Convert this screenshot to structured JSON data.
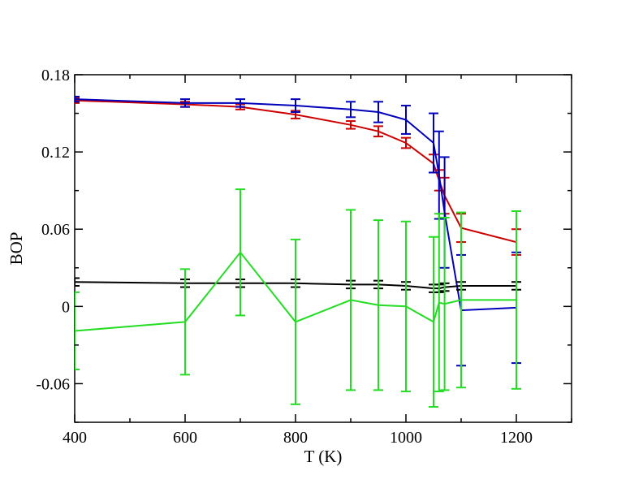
{
  "chart_data": {
    "type": "line",
    "title": "",
    "xlabel": "T (K)",
    "ylabel": "BOP",
    "xlim": [
      400,
      1300
    ],
    "ylim": [
      -0.09,
      0.18
    ],
    "xticks": [
      400,
      600,
      800,
      1000,
      1200
    ],
    "xtick_labels": [
      "400",
      "600",
      "800",
      "1000",
      "1200"
    ],
    "yticks": [
      -0.06,
      0,
      0.06,
      0.12,
      0.18
    ],
    "ytick_labels": [
      "-0.06",
      "0",
      "0.06",
      "0.12",
      "0.18"
    ],
    "grid": false,
    "legend": "none",
    "series": [
      {
        "color": "#cc0000",
        "x": [
          400,
          600,
          700,
          800,
          900,
          950,
          1000,
          1050,
          1060,
          1070,
          1100,
          1200
        ],
        "y": [
          0.16,
          0.157,
          0.155,
          0.149,
          0.141,
          0.136,
          0.127,
          0.111,
          0.098,
          0.086,
          0.061,
          0.05
        ],
        "err": [
          0.002,
          0.002,
          0.002,
          0.003,
          0.003,
          0.004,
          0.004,
          0.007,
          0.008,
          0.014,
          0.011,
          0.01
        ]
      },
      {
        "color": "#0000bb",
        "x": [
          400,
          600,
          700,
          800,
          900,
          950,
          1000,
          1050,
          1060,
          1070,
          1100,
          1200
        ],
        "y": [
          0.161,
          0.158,
          0.158,
          0.156,
          0.153,
          0.151,
          0.145,
          0.127,
          0.102,
          0.073,
          -0.003,
          -0.001
        ],
        "err": [
          0.002,
          0.003,
          0.003,
          0.005,
          0.006,
          0.008,
          0.011,
          0.023,
          0.034,
          0.043,
          0.043,
          0.043
        ]
      },
      {
        "color": "#000000",
        "x": [
          400,
          600,
          700,
          800,
          900,
          950,
          1000,
          1050,
          1060,
          1070,
          1100,
          1200
        ],
        "y": [
          0.019,
          0.018,
          0.018,
          0.018,
          0.017,
          0.017,
          0.016,
          0.014,
          0.014,
          0.015,
          0.016,
          0.016
        ],
        "err": [
          0.003,
          0.003,
          0.003,
          0.003,
          0.003,
          0.003,
          0.003,
          0.003,
          0.003,
          0.003,
          0.003,
          0.003
        ]
      },
      {
        "color": "#22dd22",
        "x": [
          400,
          600,
          700,
          800,
          900,
          950,
          1000,
          1050,
          1060,
          1070,
          1100,
          1200
        ],
        "y": [
          -0.019,
          -0.012,
          0.042,
          -0.012,
          0.005,
          0.001,
          0.0,
          -0.012,
          0.003,
          0.002,
          0.005,
          0.005
        ],
        "err": [
          0.03,
          0.041,
          0.049,
          0.064,
          0.07,
          0.066,
          0.066,
          0.066,
          0.069,
          0.067,
          0.068,
          0.069
        ]
      }
    ]
  }
}
